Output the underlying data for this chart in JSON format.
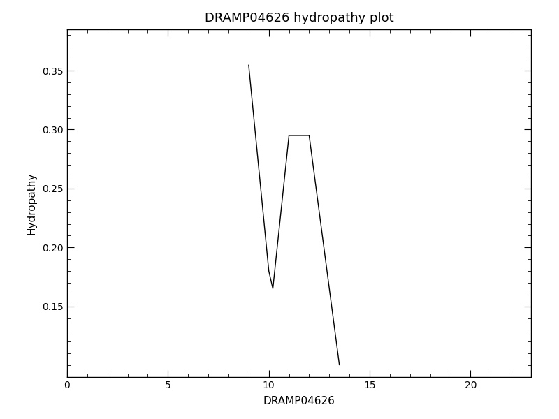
{
  "title": "DRAMP04626 hydropathy plot",
  "xlabel": "DRAMP04626",
  "ylabel": "Hydropathy",
  "x": [
    9.0,
    10.0,
    10.2,
    11.0,
    12.0,
    12.0,
    13.0,
    13.5
  ],
  "y": [
    0.355,
    0.18,
    0.165,
    0.295,
    0.295,
    0.295,
    0.165,
    0.1
  ],
  "xlim": [
    0,
    23
  ],
  "ylim": [
    0.09,
    0.385
  ],
  "xticks": [
    0,
    5,
    10,
    15,
    20
  ],
  "yticks": [
    0.15,
    0.2,
    0.25,
    0.3,
    0.35
  ],
  "line_color": "#000000",
  "line_width": 1.0,
  "bg_color": "#ffffff",
  "title_fontsize": 13,
  "label_fontsize": 11,
  "tick_fontsize": 10,
  "fig_width": 8.0,
  "fig_height": 6.0,
  "dpi": 100
}
